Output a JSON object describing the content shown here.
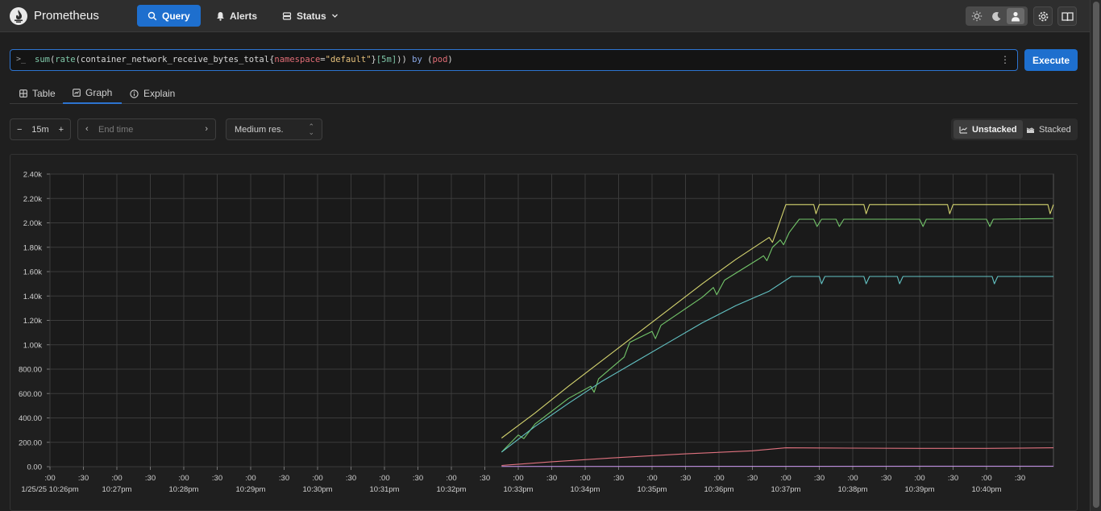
{
  "header": {
    "brand": "Prometheus",
    "nav": [
      {
        "label": "Query",
        "icon": "search-icon",
        "active": true
      },
      {
        "label": "Alerts",
        "icon": "bell-icon"
      },
      {
        "label": "Status",
        "icon": "server-icon",
        "dropdown": true
      }
    ],
    "theme_options": [
      "light",
      "dark",
      "auto"
    ],
    "theme_selected": "auto"
  },
  "query": {
    "prompt": ">_",
    "expression": "sum(rate(container_network_receive_bytes_total{namespace=\"default\"}[5m])) by (pod)",
    "execute_label": "Execute"
  },
  "tabs": [
    {
      "label": "Table"
    },
    {
      "label": "Graph",
      "active": true
    },
    {
      "label": "Explain"
    }
  ],
  "controls": {
    "range": "15m",
    "end_time_placeholder": "End time",
    "resolution": "Medium res.",
    "stack_options": [
      "Unstacked",
      "Stacked"
    ],
    "stack_selected": "Unstacked"
  },
  "colors": {
    "accent": "#1e6fce",
    "background": "#1f1f1f"
  },
  "chart_data": {
    "type": "line",
    "y_ticks": [
      "0.00",
      "200.00",
      "400.00",
      "600.00",
      "800.00",
      "1.00k",
      "1.20k",
      "1.40k",
      "1.60k",
      "1.80k",
      "2.00k",
      "2.20k",
      "2.40k"
    ],
    "ylim": [
      0,
      2400
    ],
    "xlim": [
      "10:26:00",
      "10:41:00"
    ],
    "x_ticks": [
      {
        "t": "10:26:00",
        "top": ":00",
        "bottom": "1/25/25 10:26pm"
      },
      {
        "t": "10:26:30",
        "top": ":30",
        "bottom": ""
      },
      {
        "t": "10:27:00",
        "top": ":00",
        "bottom": "10:27pm"
      },
      {
        "t": "10:27:30",
        "top": ":30",
        "bottom": ""
      },
      {
        "t": "10:28:00",
        "top": ":00",
        "bottom": "10:28pm"
      },
      {
        "t": "10:28:30",
        "top": ":30",
        "bottom": ""
      },
      {
        "t": "10:29:00",
        "top": ":00",
        "bottom": "10:29pm"
      },
      {
        "t": "10:29:30",
        "top": ":30",
        "bottom": ""
      },
      {
        "t": "10:30:00",
        "top": ":00",
        "bottom": "10:30pm"
      },
      {
        "t": "10:30:30",
        "top": ":30",
        "bottom": ""
      },
      {
        "t": "10:31:00",
        "top": ":00",
        "bottom": "10:31pm"
      },
      {
        "t": "10:31:30",
        "top": ":30",
        "bottom": ""
      },
      {
        "t": "10:32:00",
        "top": ":00",
        "bottom": "10:32pm"
      },
      {
        "t": "10:32:30",
        "top": ":30",
        "bottom": ""
      },
      {
        "t": "10:33:00",
        "top": ":00",
        "bottom": "10:33pm"
      },
      {
        "t": "10:33:30",
        "top": ":30",
        "bottom": ""
      },
      {
        "t": "10:34:00",
        "top": ":00",
        "bottom": "10:34pm"
      },
      {
        "t": "10:34:30",
        "top": ":30",
        "bottom": ""
      },
      {
        "t": "10:35:00",
        "top": ":00",
        "bottom": "10:35pm"
      },
      {
        "t": "10:35:30",
        "top": ":30",
        "bottom": ""
      },
      {
        "t": "10:36:00",
        "top": ":00",
        "bottom": "10:36pm"
      },
      {
        "t": "10:36:30",
        "top": ":30",
        "bottom": ""
      },
      {
        "t": "10:37:00",
        "top": ":00",
        "bottom": "10:37pm"
      },
      {
        "t": "10:37:30",
        "top": ":30",
        "bottom": ""
      },
      {
        "t": "10:38:00",
        "top": ":00",
        "bottom": "10:38pm"
      },
      {
        "t": "10:38:30",
        "top": ":30",
        "bottom": ""
      },
      {
        "t": "10:39:00",
        "top": ":00",
        "bottom": "10:39pm"
      },
      {
        "t": "10:39:30",
        "top": ":30",
        "bottom": ""
      },
      {
        "t": "10:40:00",
        "top": ":00",
        "bottom": "10:40pm"
      },
      {
        "t": "10:40:30",
        "top": ":30",
        "bottom": ""
      }
    ],
    "grid": true,
    "series": [
      {
        "color": "#d4d46f",
        "points": [
          [
            "10:32:45",
            235
          ],
          [
            "10:33:15",
            440
          ],
          [
            "10:33:45",
            660
          ],
          [
            "10:34:15",
            870
          ],
          [
            "10:34:45",
            1080
          ],
          [
            "10:35:15",
            1290
          ],
          [
            "10:35:45",
            1500
          ],
          [
            "10:36:15",
            1700
          ],
          [
            "10:36:45",
            1880
          ],
          [
            "10:36:48",
            1840
          ],
          [
            "10:36:52",
            1940
          ],
          [
            "10:37:00",
            2150
          ],
          [
            "10:37:25",
            2150
          ],
          [
            "10:37:27",
            2075
          ],
          [
            "10:37:30",
            2150
          ],
          [
            "10:38:10",
            2150
          ],
          [
            "10:38:12",
            2075
          ],
          [
            "10:38:15",
            2150
          ],
          [
            "10:39:25",
            2150
          ],
          [
            "10:39:27",
            2075
          ],
          [
            "10:39:30",
            2150
          ],
          [
            "10:40:55",
            2150
          ],
          [
            "10:40:57",
            2075
          ],
          [
            "10:41:00",
            2150
          ]
        ]
      },
      {
        "color": "#73c66a",
        "points": [
          [
            "10:32:45",
            120
          ],
          [
            "10:33:00",
            260
          ],
          [
            "10:33:05",
            230
          ],
          [
            "10:33:15",
            350
          ],
          [
            "10:33:45",
            560
          ],
          [
            "10:34:05",
            660
          ],
          [
            "10:34:08",
            610
          ],
          [
            "10:34:12",
            720
          ],
          [
            "10:34:35",
            900
          ],
          [
            "10:34:40",
            1020
          ],
          [
            "10:35:00",
            1110
          ],
          [
            "10:35:03",
            1050
          ],
          [
            "10:35:08",
            1160
          ],
          [
            "10:35:45",
            1390
          ],
          [
            "10:35:55",
            1470
          ],
          [
            "10:35:58",
            1410
          ],
          [
            "10:36:05",
            1530
          ],
          [
            "10:36:35",
            1700
          ],
          [
            "10:36:40",
            1730
          ],
          [
            "10:36:43",
            1690
          ],
          [
            "10:36:48",
            1800
          ],
          [
            "10:36:55",
            1860
          ],
          [
            "10:36:58",
            1820
          ],
          [
            "10:37:03",
            1920
          ],
          [
            "10:37:12",
            2030
          ],
          [
            "10:37:25",
            2030
          ],
          [
            "10:37:28",
            1970
          ],
          [
            "10:37:32",
            2030
          ],
          [
            "10:37:45",
            2030
          ],
          [
            "10:37:48",
            1970
          ],
          [
            "10:37:52",
            2030
          ],
          [
            "10:39:00",
            2030
          ],
          [
            "10:39:03",
            1970
          ],
          [
            "10:39:06",
            2030
          ],
          [
            "10:40:00",
            2030
          ],
          [
            "10:40:03",
            1970
          ],
          [
            "10:40:06",
            2030
          ],
          [
            "10:41:00",
            2035
          ]
        ]
      },
      {
        "color": "#63c3c4",
        "points": [
          [
            "10:32:45",
            120
          ],
          [
            "10:33:15",
            330
          ],
          [
            "10:33:45",
            520
          ],
          [
            "10:34:15",
            700
          ],
          [
            "10:34:45",
            860
          ],
          [
            "10:35:15",
            1020
          ],
          [
            "10:35:45",
            1180
          ],
          [
            "10:36:15",
            1320
          ],
          [
            "10:36:45",
            1440
          ],
          [
            "10:37:05",
            1560
          ],
          [
            "10:37:30",
            1560
          ],
          [
            "10:37:32",
            1500
          ],
          [
            "10:37:35",
            1560
          ],
          [
            "10:38:10",
            1560
          ],
          [
            "10:38:12",
            1500
          ],
          [
            "10:38:15",
            1560
          ],
          [
            "10:38:40",
            1560
          ],
          [
            "10:38:42",
            1500
          ],
          [
            "10:38:45",
            1560
          ],
          [
            "10:40:05",
            1560
          ],
          [
            "10:40:07",
            1500
          ],
          [
            "10:40:10",
            1560
          ],
          [
            "10:41:00",
            1560
          ]
        ]
      },
      {
        "color": "#e0727f",
        "points": [
          [
            "10:32:45",
            10
          ],
          [
            "10:33:30",
            40
          ],
          [
            "10:34:30",
            75
          ],
          [
            "10:35:30",
            105
          ],
          [
            "10:36:30",
            130
          ],
          [
            "10:37:00",
            155
          ],
          [
            "10:38:00",
            152
          ],
          [
            "10:39:00",
            150
          ],
          [
            "10:40:00",
            150
          ],
          [
            "10:41:00",
            155
          ]
        ]
      },
      {
        "color": "#b98ad9",
        "points": [
          [
            "10:32:45",
            2
          ],
          [
            "10:41:00",
            4
          ]
        ]
      }
    ]
  }
}
